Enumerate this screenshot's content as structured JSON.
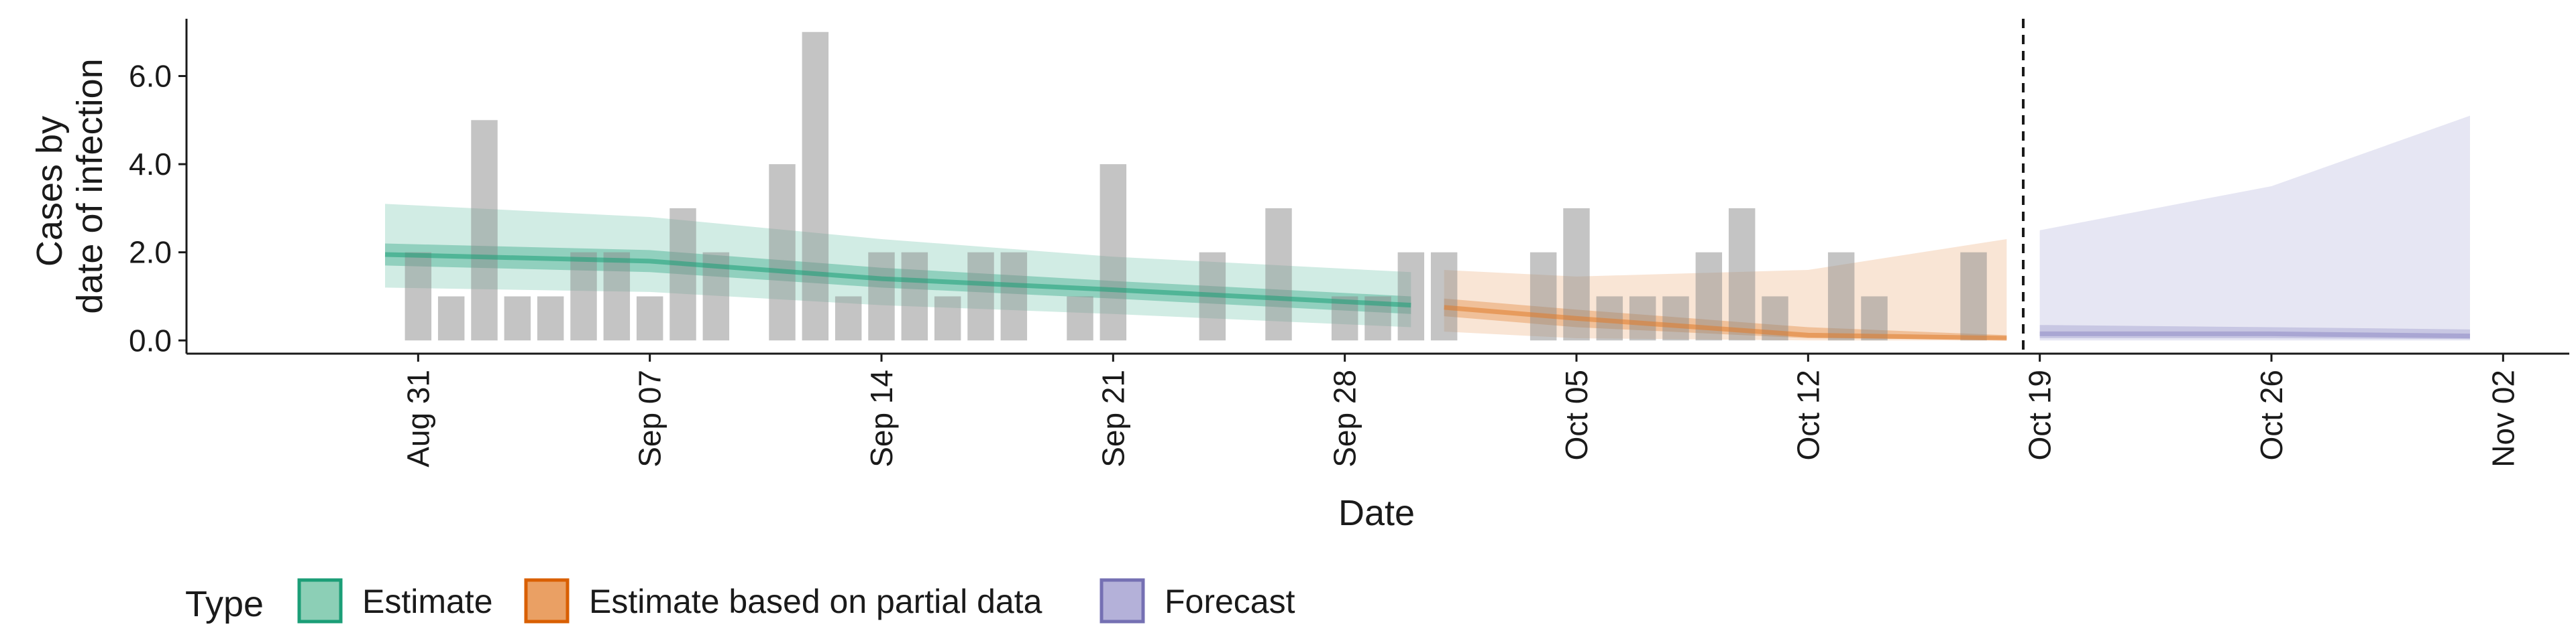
{
  "chart_data": {
    "type": "bar",
    "xlabel": "Date",
    "ylabel_lines": [
      "Cases by",
      "date of infection"
    ],
    "ylim": [
      -0.3,
      7.3
    ],
    "y_ticks": [
      0,
      2,
      4,
      6
    ],
    "y_tick_labels": [
      "0.0",
      "2.0",
      "4.0",
      "6.0"
    ],
    "x_range": [
      "2020-08-24",
      "2020-11-04"
    ],
    "x_ticks": [
      "2020-08-31",
      "2020-09-07",
      "2020-09-14",
      "2020-09-21",
      "2020-09-28",
      "2020-10-05",
      "2020-10-12",
      "2020-10-19",
      "2020-10-26",
      "2020-11-02"
    ],
    "x_tick_labels": [
      "Aug 31",
      "Sep 07",
      "Sep 14",
      "Sep 21",
      "Sep 28",
      "Oct 05",
      "Oct 12",
      "Oct 19",
      "Oct 26",
      "Nov 02"
    ],
    "forecast_start": "2020-10-18",
    "bars": [
      {
        "date": "2020-08-31",
        "value": 2
      },
      {
        "date": "2020-09-01",
        "value": 1
      },
      {
        "date": "2020-09-02",
        "value": 5
      },
      {
        "date": "2020-09-03",
        "value": 1
      },
      {
        "date": "2020-09-04",
        "value": 1
      },
      {
        "date": "2020-09-05",
        "value": 2
      },
      {
        "date": "2020-09-06",
        "value": 2
      },
      {
        "date": "2020-09-07",
        "value": 1
      },
      {
        "date": "2020-09-08",
        "value": 3
      },
      {
        "date": "2020-09-09",
        "value": 2
      },
      {
        "date": "2020-09-11",
        "value": 4
      },
      {
        "date": "2020-09-12",
        "value": 7
      },
      {
        "date": "2020-09-13",
        "value": 1
      },
      {
        "date": "2020-09-14",
        "value": 2
      },
      {
        "date": "2020-09-15",
        "value": 2
      },
      {
        "date": "2020-09-16",
        "value": 1
      },
      {
        "date": "2020-09-17",
        "value": 2
      },
      {
        "date": "2020-09-18",
        "value": 2
      },
      {
        "date": "2020-09-20",
        "value": 1
      },
      {
        "date": "2020-09-21",
        "value": 4
      },
      {
        "date": "2020-09-24",
        "value": 2
      },
      {
        "date": "2020-09-26",
        "value": 3
      },
      {
        "date": "2020-09-28",
        "value": 1
      },
      {
        "date": "2020-09-29",
        "value": 1
      },
      {
        "date": "2020-09-30",
        "value": 2
      },
      {
        "date": "2020-10-01",
        "value": 2
      },
      {
        "date": "2020-10-04",
        "value": 2
      },
      {
        "date": "2020-10-05",
        "value": 3
      },
      {
        "date": "2020-10-06",
        "value": 1
      },
      {
        "date": "2020-10-07",
        "value": 1
      },
      {
        "date": "2020-10-08",
        "value": 1
      },
      {
        "date": "2020-10-09",
        "value": 2
      },
      {
        "date": "2020-10-10",
        "value": 3
      },
      {
        "date": "2020-10-11",
        "value": 1
      },
      {
        "date": "2020-10-13",
        "value": 2
      },
      {
        "date": "2020-10-14",
        "value": 1
      },
      {
        "date": "2020-10-17",
        "value": 2
      }
    ],
    "series": [
      {
        "name": "Estimate",
        "color": "#1b9e77",
        "points": [
          {
            "date": "2020-08-30",
            "median": 1.95,
            "lo50": 1.7,
            "hi50": 2.2,
            "lo90": 1.2,
            "hi90": 3.1
          },
          {
            "date": "2020-09-07",
            "median": 1.8,
            "lo50": 1.55,
            "hi50": 2.05,
            "lo90": 1.1,
            "hi90": 2.8
          },
          {
            "date": "2020-09-14",
            "median": 1.4,
            "lo50": 1.2,
            "hi50": 1.65,
            "lo90": 0.8,
            "hi90": 2.3
          },
          {
            "date": "2020-09-21",
            "median": 1.15,
            "lo50": 0.95,
            "hi50": 1.35,
            "lo90": 0.6,
            "hi90": 1.9
          },
          {
            "date": "2020-09-30",
            "median": 0.8,
            "lo50": 0.6,
            "hi50": 1.0,
            "lo90": 0.3,
            "hi90": 1.55
          }
        ]
      },
      {
        "name": "Estimate based on partial data",
        "color": "#d95f02",
        "points": [
          {
            "date": "2020-10-01",
            "median": 0.75,
            "lo50": 0.55,
            "hi50": 0.95,
            "lo90": 0.2,
            "hi90": 1.6
          },
          {
            "date": "2020-10-05",
            "median": 0.5,
            "lo50": 0.3,
            "hi50": 0.7,
            "lo90": 0.05,
            "hi90": 1.45
          },
          {
            "date": "2020-10-12",
            "median": 0.12,
            "lo50": 0.05,
            "hi50": 0.3,
            "lo90": 0.0,
            "hi90": 1.6
          },
          {
            "date": "2020-10-18",
            "median": 0.05,
            "lo50": 0.02,
            "hi50": 0.12,
            "lo90": 0.0,
            "hi90": 2.3
          }
        ]
      },
      {
        "name": "Forecast",
        "color": "#7570b3",
        "points": [
          {
            "date": "2020-10-19",
            "median": 0.15,
            "lo50": 0.05,
            "hi50": 0.35,
            "lo90": 0.0,
            "hi90": 2.5
          },
          {
            "date": "2020-10-26",
            "median": 0.15,
            "lo50": 0.05,
            "hi50": 0.3,
            "lo90": 0.0,
            "hi90": 3.5
          },
          {
            "date": "2020-11-01",
            "median": 0.1,
            "lo50": 0.03,
            "hi50": 0.25,
            "lo90": 0.0,
            "hi90": 5.1
          }
        ]
      }
    ],
    "legend": {
      "title": "Type",
      "position": "bottom-left",
      "entries": [
        "Estimate",
        "Estimate based on partial data",
        "Forecast"
      ]
    },
    "grid": false
  }
}
